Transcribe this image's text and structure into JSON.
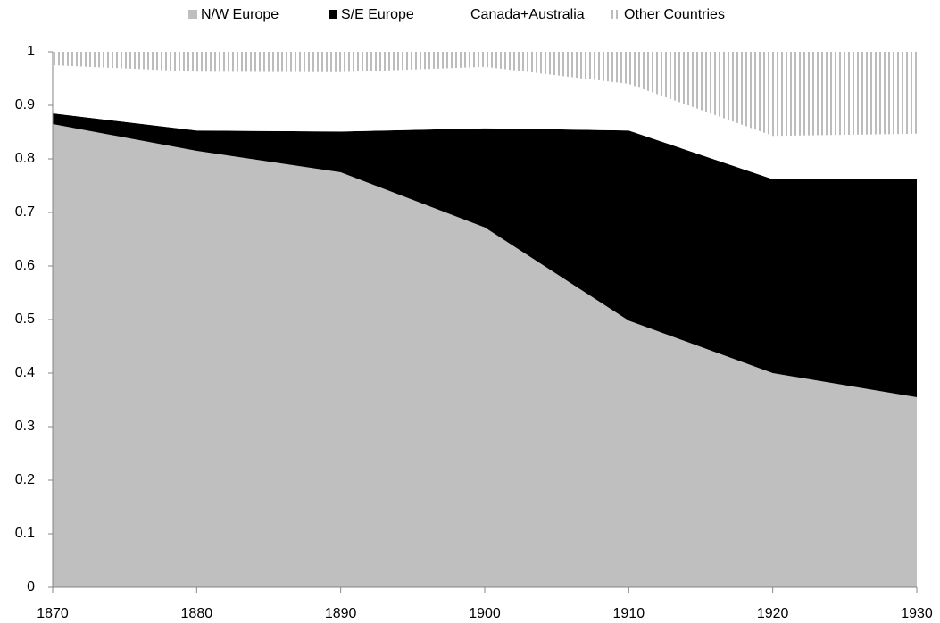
{
  "chart_data": {
    "type": "stacked_area",
    "x": [
      1870,
      1880,
      1890,
      1900,
      1910,
      1920,
      1930
    ],
    "series": [
      {
        "name": "N/W Europe",
        "color": "#bfbfbf",
        "values": [
          0.865,
          0.815,
          0.775,
          0.672,
          0.498,
          0.4,
          0.355
        ]
      },
      {
        "name": "S/E Europe",
        "color": "#000000",
        "values": [
          0.02,
          0.038,
          0.076,
          0.185,
          0.355,
          0.362,
          0.408
        ]
      },
      {
        "name": "Canada+Australia",
        "color": "#ffffff",
        "values": [
          0.09,
          0.11,
          0.111,
          0.115,
          0.087,
          0.081,
          0.084
        ]
      },
      {
        "name": "Other Countries",
        "color": "#a6a6a6",
        "hatch": "vertical",
        "values": [
          0.025,
          0.037,
          0.038,
          0.028,
          0.06,
          0.157,
          0.153
        ]
      }
    ],
    "xlim": [
      1870,
      1930
    ],
    "xticks": [
      1870,
      1880,
      1890,
      1900,
      1910,
      1920,
      1930
    ],
    "ylim": [
      0,
      1
    ],
    "yticks": [
      0,
      0.1,
      0.2,
      0.3,
      0.4,
      0.5,
      0.6,
      0.7,
      0.8,
      0.9,
      1
    ],
    "legend": "top"
  }
}
